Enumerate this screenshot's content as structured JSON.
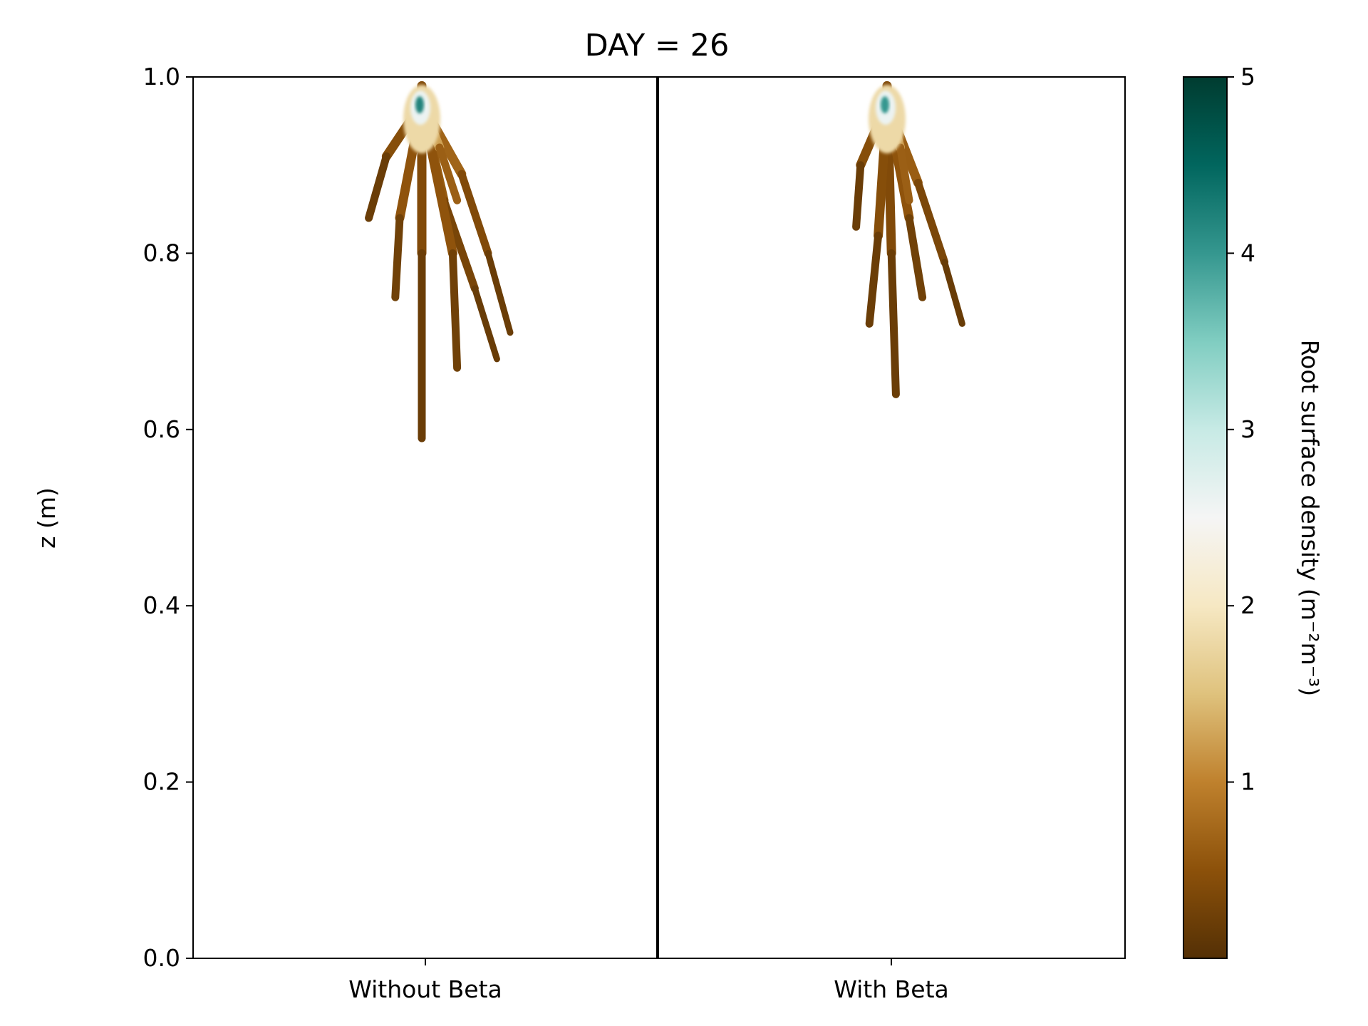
{
  "chart_data": {
    "type": "heatmap",
    "title": "DAY = 26",
    "xlabel": "",
    "ylabel": "z (m)",
    "ylim": [
      0.0,
      1.0
    ],
    "y_ticks": [
      "0.0",
      "0.2",
      "0.4",
      "0.6",
      "0.8",
      "1.0"
    ],
    "y_tick_values": [
      0.0,
      0.2,
      0.4,
      0.6,
      0.8,
      1.0
    ],
    "categories": [
      "Without Beta",
      "With Beta"
    ],
    "grid": false,
    "colorbar": {
      "label": "Root surface density (m⁻²m⁻³)",
      "range": [
        0,
        5
      ],
      "ticks": [
        "1",
        "2",
        "3",
        "4",
        "5"
      ],
      "tick_values": [
        1,
        2,
        3,
        4,
        5
      ],
      "colormap": "BrBG",
      "stops": [
        "#543005",
        "#8c510a",
        "#bf812d",
        "#dfc27d",
        "#f6e8c3",
        "#f5f5f5",
        "#c7eae5",
        "#80cdc1",
        "#35978f",
        "#01665e",
        "#003c30"
      ]
    },
    "panels": [
      {
        "name": "Without Beta",
        "max_depth_z": 0.59,
        "top_z": 1.0,
        "peak_z": 0.97,
        "peak_value": 4.2,
        "roots": [
          {
            "x": [
              0.0,
              0.0,
              0.0
            ],
            "z": [
              0.99,
              0.8,
              0.59
            ],
            "v": [
              0.5,
              0.3,
              0.1
            ]
          },
          {
            "x": [
              0.0,
              0.05,
              0.12,
              0.17
            ],
            "z": [
              0.97,
              0.86,
              0.76,
              0.68
            ],
            "v": [
              0.8,
              0.4,
              0.25,
              0.1
            ]
          },
          {
            "x": [
              0.0,
              0.09,
              0.15,
              0.2
            ],
            "z": [
              0.97,
              0.89,
              0.8,
              0.71
            ],
            "v": [
              0.9,
              0.5,
              0.3,
              0.1
            ]
          },
          {
            "x": [
              0.0,
              0.07,
              0.08
            ],
            "z": [
              0.97,
              0.8,
              0.67
            ],
            "v": [
              0.7,
              0.35,
              0.15
            ]
          },
          {
            "x": [
              0.0,
              -0.05,
              -0.06
            ],
            "z": [
              0.97,
              0.84,
              0.75
            ],
            "v": [
              0.7,
              0.35,
              0.15
            ]
          },
          {
            "x": [
              0.0,
              -0.08,
              -0.12
            ],
            "z": [
              0.97,
              0.91,
              0.84
            ],
            "v": [
              0.6,
              0.3,
              0.1
            ]
          },
          {
            "x": [
              0.0,
              0.04,
              0.08
            ],
            "z": [
              0.97,
              0.92,
              0.86
            ],
            "v": [
              1.6,
              0.9,
              0.4
            ]
          }
        ]
      },
      {
        "name": "With Beta",
        "max_depth_z": 0.64,
        "top_z": 1.0,
        "peak_z": 0.97,
        "peak_value": 4.0,
        "roots": [
          {
            "x": [
              0.0,
              0.01,
              0.02
            ],
            "z": [
              0.99,
              0.8,
              0.64
            ],
            "v": [
              0.5,
              0.3,
              0.1
            ]
          },
          {
            "x": [
              0.0,
              0.07,
              0.13,
              0.17
            ],
            "z": [
              0.97,
              0.88,
              0.79,
              0.72
            ],
            "v": [
              0.8,
              0.45,
              0.25,
              0.1
            ]
          },
          {
            "x": [
              0.0,
              0.05,
              0.08
            ],
            "z": [
              0.97,
              0.84,
              0.75
            ],
            "v": [
              0.7,
              0.35,
              0.15
            ]
          },
          {
            "x": [
              0.0,
              -0.02,
              -0.04
            ],
            "z": [
              0.97,
              0.82,
              0.72
            ],
            "v": [
              0.6,
              0.3,
              0.1
            ]
          },
          {
            "x": [
              0.0,
              -0.06,
              -0.07
            ],
            "z": [
              0.97,
              0.9,
              0.83
            ],
            "v": [
              0.6,
              0.3,
              0.1
            ]
          },
          {
            "x": [
              0.0,
              0.03,
              0.05
            ],
            "z": [
              0.97,
              0.92,
              0.86
            ],
            "v": [
              1.5,
              0.9,
              0.4
            ]
          }
        ]
      }
    ]
  }
}
